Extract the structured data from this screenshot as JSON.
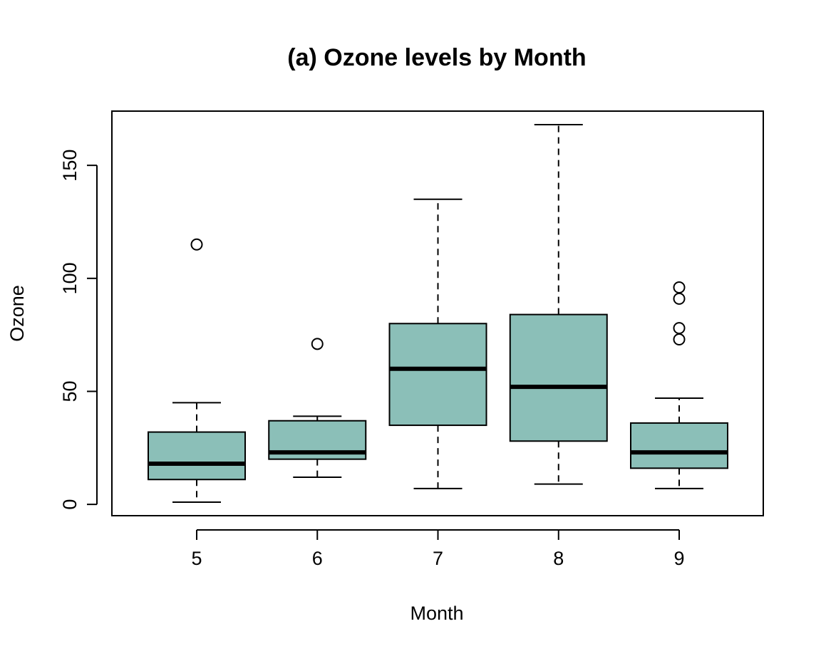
{
  "chart_data": {
    "type": "boxplot",
    "title": "(a) Ozone levels by Month",
    "xlabel": "Month",
    "ylabel": "Ozone",
    "ylim": [
      -5,
      174
    ],
    "yticks": [
      0,
      50,
      100,
      150
    ],
    "categories": [
      "5",
      "6",
      "7",
      "8",
      "9"
    ],
    "box_color": "#8BBFB8",
    "grid": false,
    "boxes": [
      {
        "category": "5",
        "whisker_low": 1,
        "q1": 11,
        "median": 18,
        "q3": 32,
        "whisker_high": 45,
        "outliers": [
          115
        ]
      },
      {
        "category": "6",
        "whisker_low": 12,
        "q1": 20,
        "median": 23,
        "q3": 37,
        "whisker_high": 39,
        "outliers": [
          71
        ]
      },
      {
        "category": "7",
        "whisker_low": 7,
        "q1": 35,
        "median": 60,
        "q3": 80,
        "whisker_high": 135,
        "outliers": []
      },
      {
        "category": "8",
        "whisker_low": 9,
        "q1": 28,
        "median": 52,
        "q3": 84,
        "whisker_high": 168,
        "outliers": []
      },
      {
        "category": "9",
        "whisker_low": 7,
        "q1": 16,
        "median": 23,
        "q3": 36,
        "whisker_high": 47,
        "outliers": [
          73,
          78,
          91,
          96
        ]
      }
    ]
  }
}
